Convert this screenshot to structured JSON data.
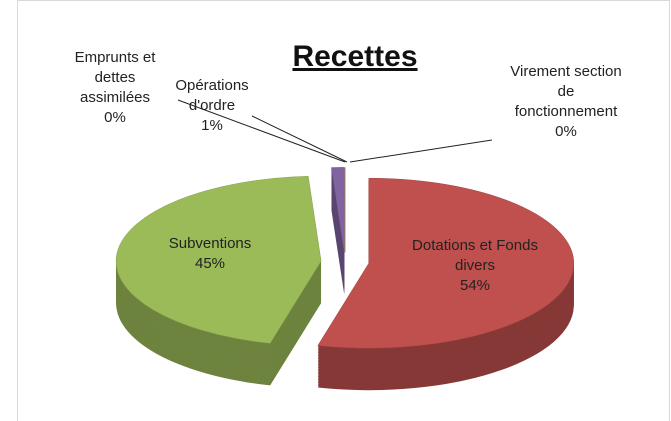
{
  "chart_data": {
    "type": "pie",
    "title": "Recettes",
    "categories": [
      "Dotations et Fonds divers",
      "Subventions",
      "Opérations d'ordre",
      "Emprunts et dettes assimilées",
      "Virement section de fonctionnement"
    ],
    "values": [
      54,
      45,
      1,
      0,
      0
    ],
    "value_labels": [
      "54%",
      "45%",
      "1%",
      "0%",
      "0%"
    ],
    "colors": [
      "#c0504d",
      "#9bbb59",
      "#8064a2",
      "#4f81bd",
      "#f79646"
    ]
  }
}
